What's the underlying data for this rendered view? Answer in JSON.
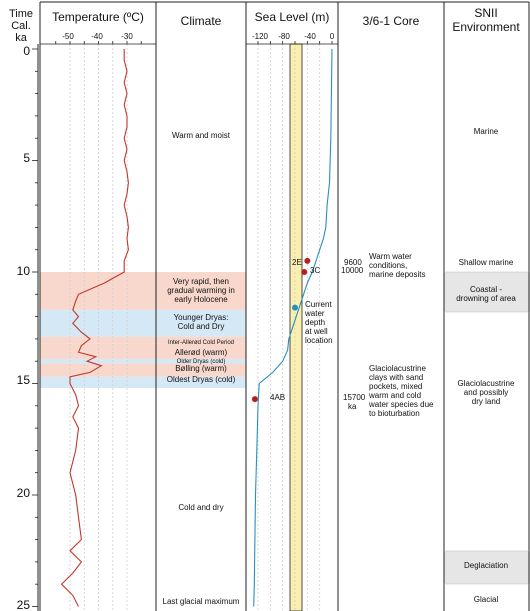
{
  "headers": {
    "time": "Time\nCal. ka",
    "temperature": "Temperature (ºC)",
    "climate": "Climate",
    "sea_level": "Sea Level (m)",
    "core": "3/6-1 Core",
    "environment": "SNII\nEnvironment"
  },
  "time_axis": {
    "ticks": [
      "0",
      "5",
      "10",
      "15",
      "20",
      "25"
    ]
  },
  "temperature_axis": {
    "ticks": [
      "-50",
      "-40",
      "-30"
    ]
  },
  "sea_level_axis": {
    "ticks": [
      "-120",
      "-80",
      "-40",
      "0"
    ]
  },
  "bands": [
    {
      "from": 10.0,
      "to": 11.7,
      "color": "#f8d8cc"
    },
    {
      "from": 11.7,
      "to": 12.9,
      "color": "#d5e8f6"
    },
    {
      "from": 12.9,
      "to": 13.2,
      "color": "#f8d8cc"
    },
    {
      "from": 13.2,
      "to": 13.9,
      "color": "#f8d8cc"
    },
    {
      "from": 13.9,
      "to": 14.1,
      "color": "#d5e8f6"
    },
    {
      "from": 14.1,
      "to": 14.7,
      "color": "#f8d8cc"
    },
    {
      "from": 14.7,
      "to": 15.2,
      "color": "#d5e8f6"
    }
  ],
  "climate": {
    "warm_moist": "Warm and moist",
    "rapid_1": "Very rapid, then",
    "rapid_2": "gradual warming in",
    "rapid_3": "early Holocene",
    "younger_dryas_1": "Younger Dryas:",
    "younger_dryas_2": "Cold and Dry",
    "inter_allerod": "Inter-Allerød Cold Period",
    "allerod": "Allerød (warm)",
    "older_dryas": "Older Dryas (cold)",
    "bolling": "Bølling (warm)",
    "oldest_dryas": "Oldest Dryas (cold)",
    "cold_dry": "Cold and dry",
    "lgm": "Last glacial maximum"
  },
  "sea_level": {
    "labels": {
      "p2E": "2E",
      "p3C": "3C",
      "p4AB": "4AB"
    },
    "annotation": [
      "Current",
      "water",
      "depth",
      "at well",
      "location"
    ]
  },
  "core": {
    "age_9600": "9600",
    "age_10000": "10000",
    "warm_1": "Warm water",
    "warm_2": "conditions,",
    "warm_3": "marine deposits",
    "age_15700_1": "15700",
    "age_15700_2": "ka",
    "g1": "Glaciolacustrine",
    "g2": "clays with sand",
    "g3": "pockets, mixed",
    "g4": "warm and cold",
    "g5": "water species due",
    "g6": "to bioturbation"
  },
  "environment": {
    "marine": "Marine",
    "shallow": "Shallow marine",
    "coastal_1": "Coastal -",
    "coastal_2": "drowning of area",
    "glacio_1": "Glaciolacustrine",
    "glacio_2": "and possibly",
    "glacio_3": "dry land",
    "deglaciation": "Deglaciation",
    "glacial": "Glacial"
  },
  "chart_data": [
    {
      "type": "line",
      "title": "Temperature (ºC)",
      "xlabel": "Temperature (ºC)",
      "ylabel": "Time Cal. ka",
      "xlim": [
        -55,
        -25
      ],
      "ylim": [
        0,
        25
      ],
      "series": [
        {
          "x": [
            0,
            0.5,
            1,
            1.5,
            2,
            2.5,
            3,
            3.5,
            4,
            4.5,
            5,
            5.5,
            6,
            6.5,
            7,
            7.5,
            8,
            8.5,
            9,
            9.5,
            10,
            10.5,
            11,
            11.3,
            11.7,
            12,
            12.3,
            12.7,
            13,
            13.3,
            13.6,
            13.8,
            14.0,
            14.2,
            14.5,
            14.7,
            15,
            15.5,
            16,
            16.5,
            17,
            18,
            19,
            20,
            21,
            22,
            22.5,
            23,
            23.5,
            24,
            24.5,
            25
          ],
          "y": [
            -31,
            -31,
            -30,
            -31,
            -30,
            -31,
            -30,
            -30,
            -31,
            -30,
            -31,
            -30,
            -29.5,
            -30,
            -31,
            -30,
            -29.5,
            -30,
            -29.5,
            -31,
            -31,
            -38,
            -47,
            -48,
            -49,
            -47,
            -49,
            -46,
            -43,
            -46,
            -47,
            -41,
            -44,
            -39,
            -43,
            -50,
            -50,
            -48,
            -47,
            -49,
            -47,
            -48,
            -50,
            -48,
            -47,
            -46,
            -50,
            -46,
            -49,
            -53,
            -49,
            -47
          ]
        }
      ]
    },
    {
      "type": "line",
      "title": "Sea Level (m)",
      "xlabel": "Sea Level (m)",
      "ylabel": "Time Cal. ka",
      "xlim": [
        -135,
        0
      ],
      "ylim": [
        0,
        25
      ],
      "series": [
        {
          "x": [
            0,
            4,
            6,
            7,
            8,
            8.5,
            9,
            9.5,
            10,
            10.5,
            11,
            11.5,
            12,
            12.5,
            13,
            13.5,
            14,
            14.5,
            15,
            16,
            17,
            18,
            20,
            22,
            24,
            25
          ],
          "y": [
            0,
            -2,
            -4,
            -8,
            -10,
            -14,
            -20,
            -26,
            -32,
            -40,
            -46,
            -52,
            -58,
            -64,
            -70,
            -72,
            -80,
            -96,
            -118,
            -120,
            -121,
            -122,
            -124,
            -125,
            -126,
            -127
          ]
        }
      ],
      "points": [
        {
          "label": "2E",
          "x": -40,
          "y": 9.5
        },
        {
          "label": "3C",
          "x": -45,
          "y": 10.0
        },
        {
          "label": "4AB",
          "x": -125,
          "y": 15.7
        }
      ]
    }
  ]
}
